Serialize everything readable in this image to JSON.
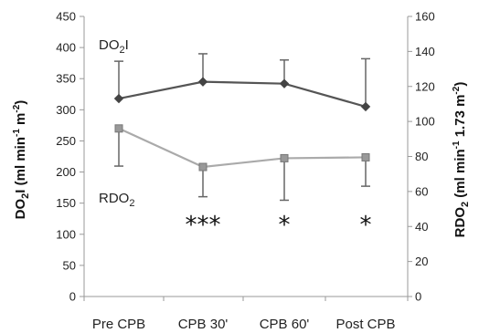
{
  "chart_data": {
    "type": "line",
    "categories": [
      "Pre CPB",
      "CPB 30'",
      "CPB 60'",
      "Post CPB"
    ],
    "y_left": {
      "label_main": "DO",
      "label_sub": "2",
      "label_rest": "I (ml min",
      "label_sup1": "-1",
      "label_mid": " m",
      "label_sup2": "-2",
      "label_end": ")",
      "range": [
        0,
        450
      ],
      "ticks": [
        "0",
        "50",
        "100",
        "150",
        "200",
        "250",
        "300",
        "350",
        "400",
        "450"
      ]
    },
    "y_right": {
      "label_main": "RDO",
      "label_sub": "2",
      "label_rest": " (ml min",
      "label_sup1": "-1",
      "label_mid": " 1.73 m",
      "label_sup2": "-2",
      "label_end": ")",
      "range": [
        0,
        160
      ],
      "ticks": [
        "0",
        "20",
        "40",
        "60",
        "80",
        "100",
        "120",
        "140",
        "160"
      ]
    },
    "series": [
      {
        "name_main": "DO",
        "name_sub": "2",
        "name_rest": "I",
        "axis": "left",
        "color": "#555555",
        "marker": "diamond",
        "values": [
          318,
          345,
          342,
          305
        ],
        "error_upper": [
          378,
          390,
          380,
          382
        ]
      },
      {
        "name_main": "RDO",
        "name_sub": "2",
        "name_rest": "",
        "axis": "right",
        "color": "#aaaaaa",
        "marker": "square",
        "values": [
          96,
          74,
          79,
          79.5
        ],
        "error_lower": [
          74.5,
          57,
          55,
          63
        ]
      }
    ],
    "significance": [
      "",
      "***",
      "*",
      "*"
    ],
    "grid": false,
    "legend": "inline labels"
  }
}
